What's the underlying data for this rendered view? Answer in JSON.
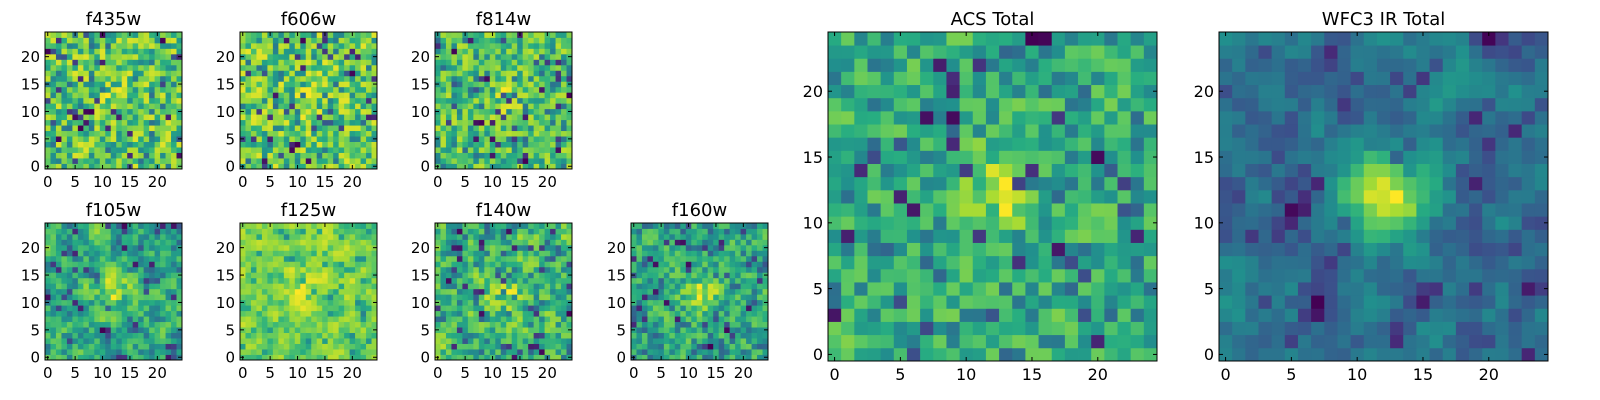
{
  "chart_data": [
    {
      "type": "heatmap",
      "title": "f435w",
      "grid_size": 25,
      "xlim": [
        0,
        24
      ],
      "ylim": [
        0,
        24
      ],
      "xticks": [
        "0",
        "5",
        "10",
        "15",
        "20"
      ],
      "yticks": [
        "0",
        "5",
        "10",
        "15",
        "20"
      ],
      "colormap": "viridis",
      "seed": 11,
      "center_peak": 0.05,
      "smoothing": 0.0
    },
    {
      "type": "heatmap",
      "title": "f606w",
      "grid_size": 25,
      "xlim": [
        0,
        24
      ],
      "ylim": [
        0,
        24
      ],
      "xticks": [
        "0",
        "5",
        "10",
        "15",
        "20"
      ],
      "yticks": [
        "0",
        "5",
        "10",
        "15",
        "20"
      ],
      "colormap": "viridis",
      "seed": 23,
      "center_peak": 0.1,
      "smoothing": 0.0
    },
    {
      "type": "heatmap",
      "title": "f814w",
      "grid_size": 25,
      "xlim": [
        0,
        24
      ],
      "ylim": [
        0,
        24
      ],
      "xticks": [
        "0",
        "5",
        "10",
        "15",
        "20"
      ],
      "yticks": [
        "0",
        "5",
        "10",
        "15",
        "20"
      ],
      "colormap": "viridis",
      "seed": 37,
      "center_peak": 0.15,
      "smoothing": 0.0
    },
    {
      "type": "heatmap",
      "title": "f105w",
      "grid_size": 25,
      "xlim": [
        0,
        24
      ],
      "ylim": [
        0,
        24
      ],
      "xticks": [
        "0",
        "5",
        "10",
        "15",
        "20"
      ],
      "yticks": [
        "0",
        "5",
        "10",
        "15",
        "20"
      ],
      "colormap": "viridis",
      "seed": 41,
      "center_peak": 0.25,
      "smoothing": 0.5
    },
    {
      "type": "heatmap",
      "title": "f125w",
      "grid_size": 25,
      "xlim": [
        0,
        24
      ],
      "ylim": [
        0,
        24
      ],
      "xticks": [
        "0",
        "5",
        "10",
        "15",
        "20"
      ],
      "yticks": [
        "0",
        "5",
        "10",
        "15",
        "20"
      ],
      "colormap": "viridis",
      "seed": 53,
      "center_peak": 0.2,
      "smoothing": 0.6,
      "floor": 0.45
    },
    {
      "type": "heatmap",
      "title": "f140w",
      "grid_size": 25,
      "xlim": [
        0,
        24
      ],
      "ylim": [
        0,
        24
      ],
      "xticks": [
        "0",
        "5",
        "10",
        "15",
        "20"
      ],
      "yticks": [
        "0",
        "5",
        "10",
        "15",
        "20"
      ],
      "colormap": "viridis",
      "seed": 67,
      "center_peak": 0.25,
      "smoothing": 0.4
    },
    {
      "type": "heatmap",
      "title": "f160w",
      "grid_size": 25,
      "xlim": [
        0,
        24
      ],
      "ylim": [
        0,
        24
      ],
      "xticks": [
        "0",
        "5",
        "10",
        "15",
        "20"
      ],
      "yticks": [
        "0",
        "5",
        "10",
        "15",
        "20"
      ],
      "colormap": "viridis",
      "seed": 79,
      "center_peak": 0.3,
      "smoothing": 0.3
    },
    {
      "type": "heatmap",
      "title": "ACS Total",
      "grid_size": 25,
      "xlim": [
        0,
        24
      ],
      "ylim": [
        0,
        24
      ],
      "xticks": [
        "0",
        "5",
        "10",
        "15",
        "20"
      ],
      "yticks": [
        "0",
        "5",
        "10",
        "15",
        "20"
      ],
      "colormap": "viridis",
      "seed": 97,
      "center_peak": 0.35,
      "smoothing": 0.2
    },
    {
      "type": "heatmap",
      "title": "WFC3 IR Total",
      "grid_size": 25,
      "xlim": [
        0,
        24
      ],
      "ylim": [
        0,
        24
      ],
      "xticks": [
        "0",
        "5",
        "10",
        "15",
        "20"
      ],
      "yticks": [
        "0",
        "5",
        "10",
        "15",
        "20"
      ],
      "colormap": "viridis",
      "seed": 113,
      "center_peak": 0.6,
      "smoothing": 0.7
    }
  ]
}
